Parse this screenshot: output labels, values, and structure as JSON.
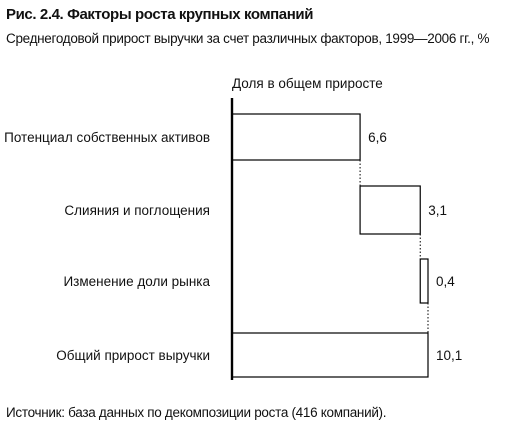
{
  "header": {
    "title": "Рис. 2.4. Факторы роста крупных компаний",
    "subtitle": "Среднегодовой прирост выручки за счет различных факторов, 1999—2006 гг., %"
  },
  "footer": {
    "source": "Источник: база данных по декомпозиции роста (416 компаний)."
  },
  "chart_data": {
    "type": "bar",
    "subtype": "waterfall",
    "orientation": "horizontal",
    "title": "Рис. 2.4. Факторы роста крупных компаний",
    "subtitle": "Среднегодовой прирост выручки за счет различных факторов, 1999—2006 гг., %",
    "axis_label": "Доля в общем приросте",
    "categories": [
      "Потенциал собственных активов",
      "Слияния и поглощения",
      "Изменение доли рынка",
      "Общий прирост выручки"
    ],
    "values": [
      6.6,
      3.1,
      0.4,
      10.1
    ],
    "value_labels": [
      "6,6",
      "3,1",
      "0,4",
      "10,1"
    ],
    "is_total": [
      false,
      false,
      false,
      true
    ],
    "xlim": [
      0,
      10.1
    ],
    "grid": false,
    "legend": "none",
    "bar_fill": "#ffffff",
    "bar_stroke": "#000000"
  }
}
